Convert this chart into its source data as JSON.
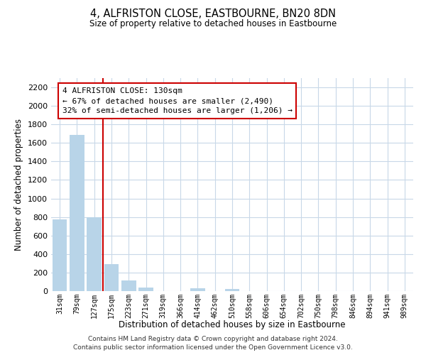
{
  "title": "4, ALFRISTON CLOSE, EASTBOURNE, BN20 8DN",
  "subtitle": "Size of property relative to detached houses in Eastbourne",
  "xlabel": "Distribution of detached houses by size in Eastbourne",
  "ylabel": "Number of detached properties",
  "bar_labels": [
    "31sqm",
    "79sqm",
    "127sqm",
    "175sqm",
    "223sqm",
    "271sqm",
    "319sqm",
    "366sqm",
    "414sqm",
    "462sqm",
    "510sqm",
    "558sqm",
    "606sqm",
    "654sqm",
    "702sqm",
    "750sqm",
    "798sqm",
    "846sqm",
    "894sqm",
    "941sqm",
    "989sqm"
  ],
  "bar_values": [
    775,
    1685,
    800,
    295,
    115,
    35,
    0,
    0,
    30,
    0,
    20,
    0,
    0,
    0,
    0,
    0,
    0,
    0,
    0,
    0,
    0
  ],
  "bar_color": "#b8d4e8",
  "vline_x_index": 2,
  "vline_color": "#cc0000",
  "ylim": [
    0,
    2300
  ],
  "yticks": [
    0,
    200,
    400,
    600,
    800,
    1000,
    1200,
    1400,
    1600,
    1800,
    2000,
    2200
  ],
  "annotation_title": "4 ALFRISTON CLOSE: 130sqm",
  "annotation_line1": "← 67% of detached houses are smaller (2,490)",
  "annotation_line2": "32% of semi-detached houses are larger (1,206) →",
  "footer_line1": "Contains HM Land Registry data © Crown copyright and database right 2024.",
  "footer_line2": "Contains public sector information licensed under the Open Government Licence v3.0.",
  "background_color": "#ffffff",
  "grid_color": "#c8d8e8"
}
